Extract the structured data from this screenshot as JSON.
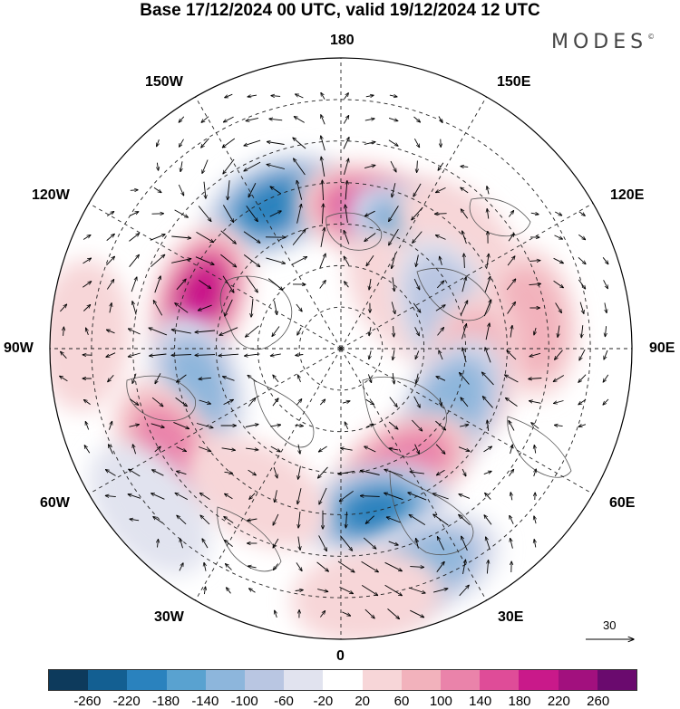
{
  "title": "Base 17/12/2024 00 UTC, valid 19/12/2024 12 UTC",
  "brand": "MODES",
  "brand_mark": "©",
  "longitude_labels": {
    "lon_180": "180",
    "lon_150w": "150W",
    "lon_150e": "150E",
    "lon_120w": "120W",
    "lon_120e": "120E",
    "lon_90w": "90W",
    "lon_90e": "90E",
    "lon_60w": "60W",
    "lon_60e": "60E",
    "lon_30w": "30W",
    "lon_30e": "30E",
    "lon_0": "0"
  },
  "reference_vector_label": "30",
  "colorbar": {
    "colors": [
      "#0d3a5c",
      "#135f92",
      "#2a82be",
      "#59a2d0",
      "#8db6dc",
      "#b9c6e2",
      "#e1e3ef",
      "#ffffff",
      "#f7d6d8",
      "#f2b2bc",
      "#ea83aa",
      "#df4c98",
      "#c9198a",
      "#a2107e",
      "#6a0a6e"
    ],
    "labels": [
      "-260",
      "-220",
      "-180",
      "-140",
      "-100",
      "-60",
      "-20",
      "20",
      "60",
      "100",
      "140",
      "180",
      "220",
      "260"
    ]
  },
  "anomaly_centers": [
    {
      "lon": 205,
      "lat": 52,
      "value": -220
    },
    {
      "lon": 168,
      "lat": 56,
      "value": 170
    },
    {
      "lon": 146,
      "lat": 58,
      "value": -170
    },
    {
      "lon": 128,
      "lat": 70,
      "value": 60
    },
    {
      "lon": 132,
      "lat": 52,
      "value": 50
    },
    {
      "lon": 110,
      "lat": 63,
      "value": -110
    },
    {
      "lon": 98,
      "lat": 44,
      "value": 90
    },
    {
      "lon": 82,
      "lat": 58,
      "value": 100
    },
    {
      "lon": 62,
      "lat": 60,
      "value": -150
    },
    {
      "lon": 28,
      "lat": 58,
      "value": 150
    },
    {
      "lon": 12,
      "lat": 50,
      "value": -200
    },
    {
      "lon": 22,
      "lat": 34,
      "value": -120
    },
    {
      "lon": 6,
      "lat": 30,
      "value": 60
    },
    {
      "lon": 250,
      "lat": 54,
      "value": 220
    },
    {
      "lon": 285,
      "lat": 54,
      "value": -120
    },
    {
      "lon": 300,
      "lat": 42,
      "value": 120
    },
    {
      "lon": 330,
      "lat": 50,
      "value": 60
    },
    {
      "lon": 310,
      "lat": 30,
      "value": -60
    },
    {
      "lon": 267,
      "lat": 28,
      "value": 50
    }
  ]
}
